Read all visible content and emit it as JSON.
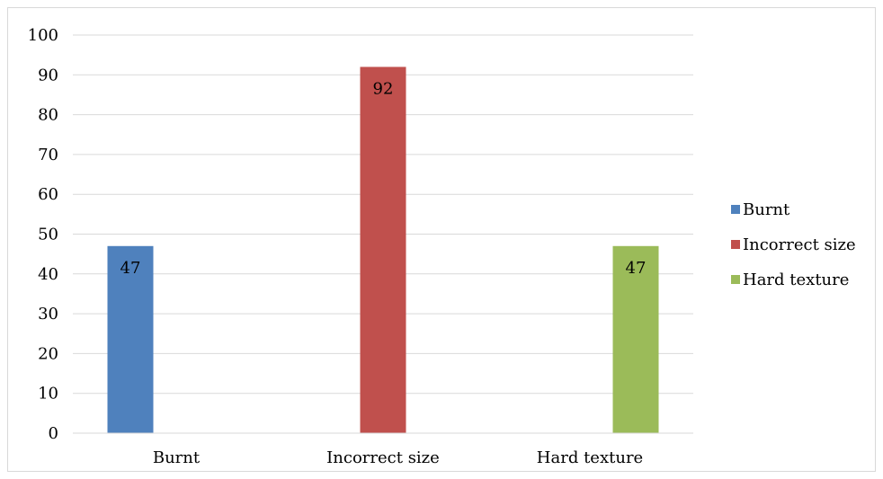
{
  "chart_data": {
    "type": "bar",
    "categories": [
      "Burnt",
      "Incorrect size",
      "Hard texture"
    ],
    "series": [
      {
        "name": "Burnt",
        "color": "#4f81bd",
        "values": [
          47,
          null,
          null
        ]
      },
      {
        "name": "Incorrect size",
        "color": "#c0504d",
        "values": [
          null,
          92,
          null
        ]
      },
      {
        "name": "Hard texture",
        "color": "#9bbb59",
        "values": [
          null,
          null,
          47
        ]
      }
    ],
    "title": "",
    "xlabel": "",
    "ylabel": "",
    "ylim": [
      0,
      100
    ],
    "yticks": [
      0,
      10,
      20,
      30,
      40,
      50,
      60,
      70,
      80,
      90,
      100
    ],
    "grid": true,
    "legend_position": "right",
    "data_labels": true
  }
}
